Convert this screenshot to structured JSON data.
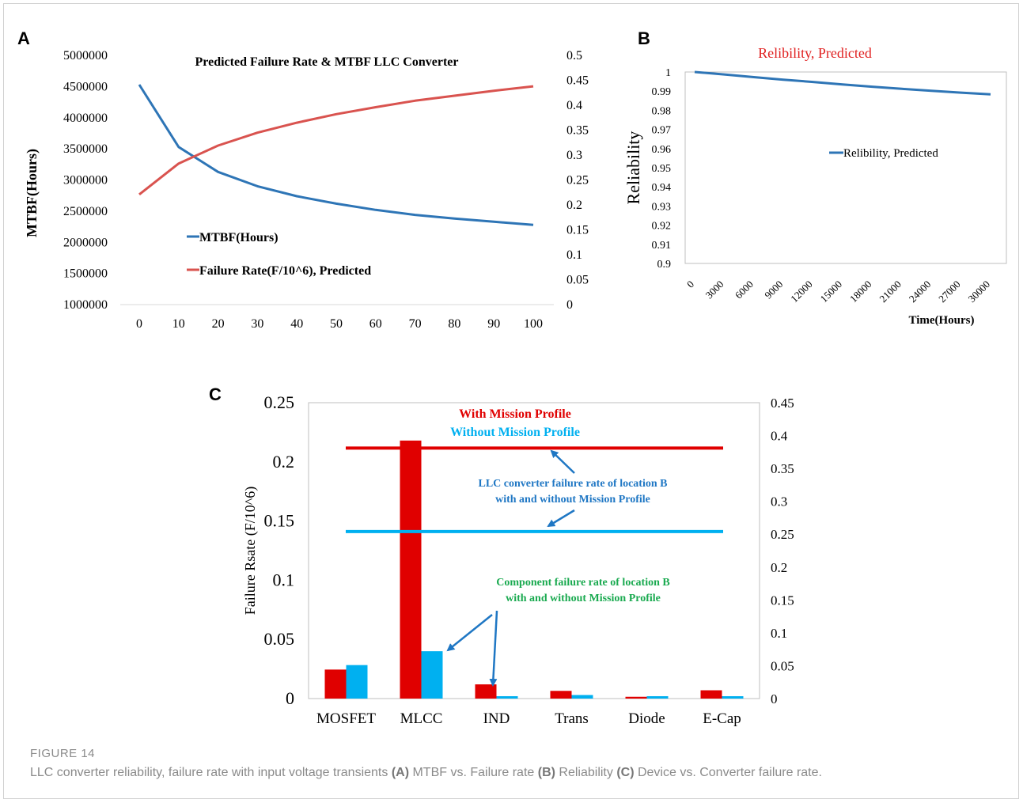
{
  "figure": {
    "label": "FIGURE 14",
    "caption_parts": [
      {
        "text": "LLC converter reliability, failure rate with input voltage transients ",
        "bold": false
      },
      {
        "text": "(A)",
        "bold": true
      },
      {
        "text": " MTBF vs. Failure rate ",
        "bold": false
      },
      {
        "text": "(B)",
        "bold": true
      },
      {
        "text": " Reliability ",
        "bold": false
      },
      {
        "text": "(C)",
        "bold": true
      },
      {
        "text": " Device vs. Converter failure rate.",
        "bold": false
      }
    ]
  },
  "panels": {
    "a": "A",
    "b": "B",
    "c": "C"
  },
  "chart_data": [
    {
      "id": "A",
      "type": "line",
      "title": "Predicted Failure Rate & MTBF LLC Converter",
      "ylabel": "MTBF(Hours)",
      "x": [
        0,
        10,
        20,
        30,
        40,
        50,
        60,
        70,
        80,
        90,
        100
      ],
      "x_ticks": [
        "0",
        "10",
        "20",
        "30",
        "40",
        "50",
        "60",
        "70",
        "80",
        "90",
        "100"
      ],
      "ylim": [
        1000000,
        5000000
      ],
      "y_ticks": [
        "1000000",
        "1500000",
        "2000000",
        "2500000",
        "3000000",
        "3500000",
        "4000000",
        "4500000",
        "5000000"
      ],
      "y2lim": [
        0,
        0.5
      ],
      "y2_ticks": [
        "0",
        "0.05",
        "0.1",
        "0.15",
        "0.2",
        "0.25",
        "0.3",
        "0.35",
        "0.4",
        "0.45",
        "0.5"
      ],
      "series": [
        {
          "name": "MTBF(Hours)",
          "axis": "left",
          "color": "#2e75b6",
          "values": [
            4530000,
            3530000,
            3130000,
            2900000,
            2740000,
            2620000,
            2520000,
            2440000,
            2380000,
            2330000,
            2280000
          ]
        },
        {
          "name": "Failure Rate(F/10^6), Predicted",
          "axis": "right",
          "color": "#d9534f",
          "values": [
            0.221,
            0.283,
            0.319,
            0.345,
            0.365,
            0.382,
            0.396,
            0.409,
            0.419,
            0.429,
            0.438
          ]
        }
      ],
      "legend_position": "center-left"
    },
    {
      "id": "B",
      "type": "line",
      "title": "Relibility, Predicted",
      "title_color": "#e02020",
      "ylabel": "Reliability",
      "xlabel": "Time(Hours)",
      "x": [
        0,
        3000,
        6000,
        9000,
        12000,
        15000,
        18000,
        21000,
        24000,
        27000,
        30000
      ],
      "x_ticks": [
        "0",
        "3000",
        "6000",
        "9000",
        "12000",
        "15000",
        "18000",
        "21000",
        "24000",
        "27000",
        "30000"
      ],
      "ylim": [
        0.9,
        1
      ],
      "y_ticks": [
        "0.9",
        "0.91",
        "0.92",
        "0.93",
        "0.94",
        "0.95",
        "0.96",
        "0.97",
        "0.98",
        "0.99",
        "1"
      ],
      "series": [
        {
          "name": "Relibility, Predicted",
          "color": "#2e75b6",
          "values": [
            1.0,
            0.9987,
            0.9973,
            0.996,
            0.9948,
            0.9935,
            0.9923,
            0.9912,
            0.9902,
            0.9892,
            0.9883
          ]
        }
      ],
      "legend_position": "center-right"
    },
    {
      "id": "C",
      "type": "bar",
      "ylabel": "Failure Rsate (F/10^6)",
      "categories": [
        "MOSFET",
        "MLCC",
        "IND",
        "Trans",
        "Diode",
        "E-Cap"
      ],
      "ylim": [
        0,
        0.25
      ],
      "y_ticks": [
        "0",
        "0.05",
        "0.1",
        "0.15",
        "0.2",
        "0.25"
      ],
      "y2lim": [
        0,
        0.45
      ],
      "y2_ticks": [
        "0",
        "0.05",
        "0.1",
        "0.15",
        "0.2",
        "0.25",
        "0.3",
        "0.35",
        "0.4",
        "0.45"
      ],
      "series": [
        {
          "name": "With Mission Profile",
          "color": "#e00000",
          "values": [
            0.0245,
            0.218,
            0.012,
            0.0065,
            0.0015,
            0.007
          ]
        },
        {
          "name": "Without Mission Profile",
          "color": "#00b0f0",
          "values": [
            0.0283,
            0.04,
            0.002,
            0.003,
            0.002,
            0.002
          ]
        }
      ],
      "reference_lines": [
        {
          "name": "With Mission Profile",
          "axis": "right",
          "value": 0.381,
          "color": "#e00000"
        },
        {
          "name": "Without Mission Profile",
          "axis": "right",
          "value": 0.254,
          "color": "#00b0f0"
        }
      ],
      "annotations": [
        {
          "lines": [
            "LLC converter  failure rate of location B",
            "with and without Mission Profile"
          ],
          "color": "#1f77c4"
        },
        {
          "lines": [
            "Component failure rate of location B",
            "with and without Mission Profile"
          ],
          "color": "#1aaa50"
        }
      ],
      "legend_position": "top-center"
    }
  ]
}
